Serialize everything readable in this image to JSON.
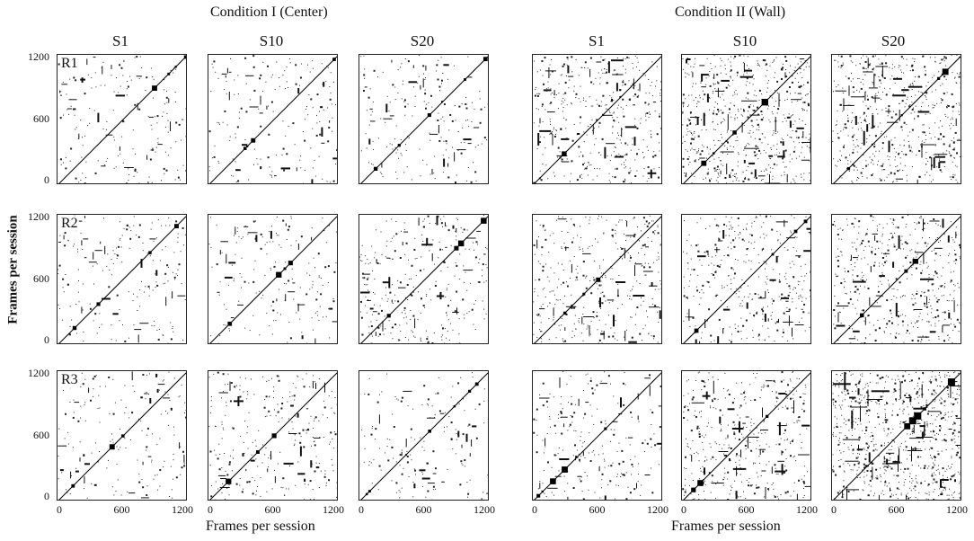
{
  "conditions": [
    {
      "title": "Condition I (Center)"
    },
    {
      "title": "Condition II (Wall)"
    }
  ],
  "sessions": [
    "S1",
    "S10",
    "S20",
    "S1",
    "S10",
    "S20"
  ],
  "rows": [
    "R1",
    "R2",
    "R3"
  ],
  "y_axis_label": "Frames per session",
  "x_axis_label": "Frames per session",
  "y_ticks": [
    "1200",
    "600",
    "0"
  ],
  "x_ticks": [
    "0",
    "600",
    "1200"
  ],
  "chart_data": {
    "type": "heatmap",
    "description_values": "recurrence plots, frames 0-1200 on both axes",
    "axis_range": [
      0,
      1200
    ],
    "panels_density": [
      [
        0.1,
        0.09,
        0.1,
        0.22,
        0.33,
        0.3
      ],
      [
        0.1,
        0.09,
        0.16,
        0.2,
        0.2,
        0.26
      ],
      [
        0.09,
        0.14,
        0.08,
        0.12,
        0.22,
        0.42
      ]
    ]
  }
}
